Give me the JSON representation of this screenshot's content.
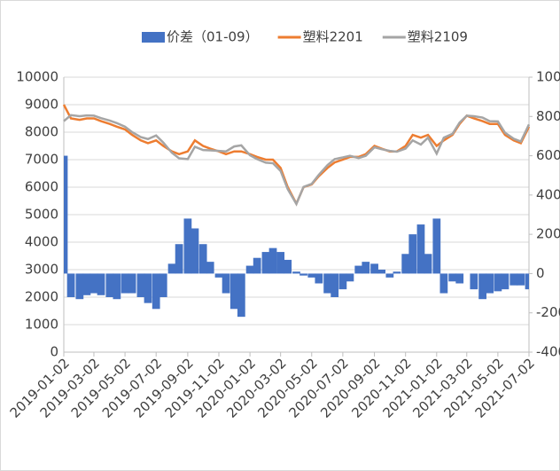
{
  "chart_data": {
    "type": "bar_line",
    "legend": "top",
    "x": [
      "2019-01-02",
      "2019-01-16",
      "2019-02-02",
      "2019-02-16",
      "2019-03-02",
      "2019-03-16",
      "2019-04-02",
      "2019-04-16",
      "2019-05-02",
      "2019-05-16",
      "2019-06-02",
      "2019-06-16",
      "2019-07-02",
      "2019-07-16",
      "2019-08-02",
      "2019-08-16",
      "2019-09-02",
      "2019-09-16",
      "2019-10-02",
      "2019-10-16",
      "2019-11-02",
      "2019-11-16",
      "2019-12-02",
      "2019-12-16",
      "2020-01-02",
      "2020-01-16",
      "2020-02-02",
      "2020-02-16",
      "2020-03-02",
      "2020-03-16",
      "2020-04-02",
      "2020-04-16",
      "2020-05-02",
      "2020-05-16",
      "2020-06-02",
      "2020-06-16",
      "2020-07-02",
      "2020-07-16",
      "2020-08-02",
      "2020-08-16",
      "2020-09-02",
      "2020-09-16",
      "2020-10-02",
      "2020-10-16",
      "2020-11-02",
      "2020-11-16",
      "2020-12-02",
      "2020-12-16",
      "2021-01-02",
      "2021-01-16",
      "2021-02-02",
      "2021-02-16",
      "2021-03-02",
      "2021-03-16",
      "2021-04-02",
      "2021-04-16",
      "2021-05-02",
      "2021-05-16",
      "2021-06-02",
      "2021-06-16",
      "2021-07-02"
    ],
    "xlim": [
      "2019-01-02",
      "2021-07-02"
    ],
    "xticks": [
      "2019-01-02",
      "2019-03-02",
      "2019-05-02",
      "2019-07-02",
      "2019-09-02",
      "2019-11-02",
      "2020-01-02",
      "2020-03-02",
      "2020-05-02",
      "2020-07-02",
      "2020-09-02",
      "2020-11-02",
      "2021-01-02",
      "2021-03-02",
      "2021-05-02",
      "2021-07-02"
    ],
    "ylim": [
      0,
      10000
    ],
    "yticks": [
      0,
      1000,
      2000,
      3000,
      4000,
      5000,
      6000,
      7000,
      8000,
      9000,
      10000
    ],
    "y2lim": [
      -400,
      1000
    ],
    "y2ticks": [
      -400,
      -200,
      0,
      200,
      400,
      600,
      800,
      1000
    ],
    "grid": true,
    "series": [
      {
        "name": "价差（01-09）",
        "type": "bar",
        "axis": "y2",
        "color": "#4472c4",
        "values": [
          600,
          -120,
          -130,
          -110,
          -100,
          -110,
          -120,
          -130,
          -100,
          -100,
          -120,
          -150,
          -180,
          -120,
          50,
          150,
          280,
          230,
          150,
          60,
          -20,
          -100,
          -180,
          -220,
          40,
          80,
          110,
          130,
          110,
          70,
          10,
          -10,
          -20,
          -50,
          -100,
          -120,
          -80,
          -40,
          40,
          60,
          50,
          20,
          -20,
          10,
          100,
          200,
          250,
          100,
          280,
          -100,
          -40,
          -50,
          0,
          -80,
          -130,
          -100,
          -90,
          -80,
          -60,
          -60,
          -80
        ]
      },
      {
        "name": "塑料2201",
        "type": "line",
        "color": "#ed7d31",
        "values": [
          9000,
          8500,
          8450,
          8500,
          8500,
          8400,
          8300,
          8200,
          8100,
          7900,
          7700,
          7600,
          7700,
          7500,
          7300,
          7200,
          7300,
          7700,
          7500,
          7400,
          7300,
          7200,
          7300,
          7300,
          7200,
          7100,
          7000,
          7000,
          6700,
          6000,
          5400,
          6000,
          6100,
          6400,
          6700,
          6900,
          7000,
          7100,
          7100,
          7200,
          7500,
          7400,
          7300,
          7300,
          7500,
          7900,
          7800,
          7900,
          7500,
          7700,
          7900,
          8300,
          8600,
          8500,
          8400,
          8300,
          8300,
          7900,
          7700,
          7600,
          8200
        ]
      },
      {
        "name": "塑料2109",
        "type": "line",
        "color": "#a5a5a5",
        "values": [
          8400,
          8620,
          8580,
          8610,
          8600,
          8510,
          8420,
          8330,
          8200,
          8000,
          7820,
          7750,
          7880,
          7620,
          7250,
          7050,
          7020,
          7470,
          7350,
          7340,
          7320,
          7300,
          7480,
          7520,
          7160,
          7020,
          6890,
          6870,
          6590,
          5930,
          5390,
          6010,
          6120,
          6450,
          6800,
          7020,
          7080,
          7140,
          7060,
          7140,
          7450,
          7380,
          7320,
          7290,
          7400,
          7700,
          7550,
          7800,
          7220,
          7800,
          7940,
          8350,
          8600,
          8580,
          8530,
          8400,
          8390,
          7980,
          7760,
          7660,
          8280
        ]
      }
    ]
  }
}
